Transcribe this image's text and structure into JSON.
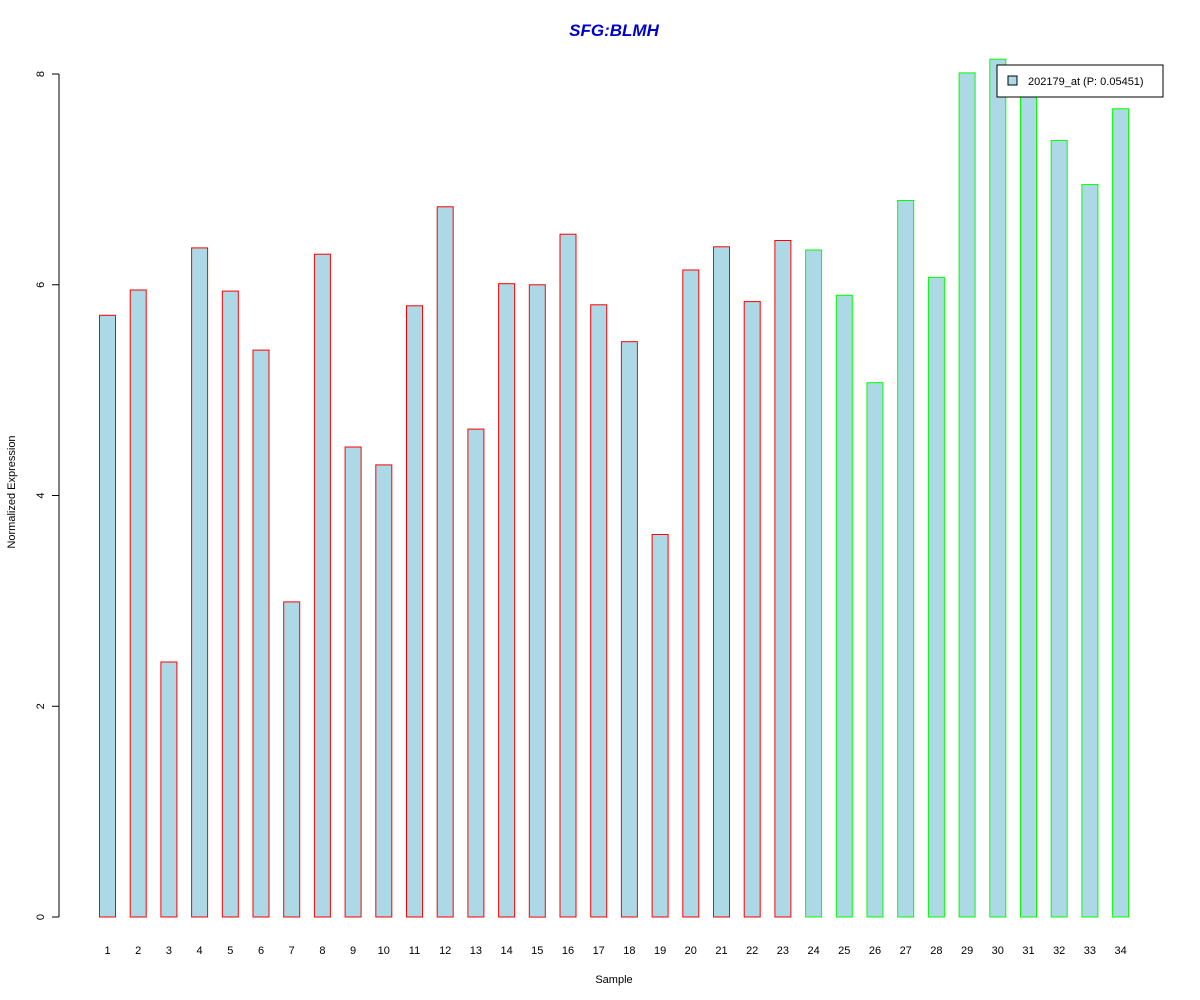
{
  "chart_data": {
    "type": "bar",
    "title": "SFG:BLMH",
    "xlabel": "Sample",
    "ylabel": "Normalized Expression",
    "ylim": [
      0,
      8
    ],
    "yticks": [
      0,
      2,
      4,
      6,
      8
    ],
    "categories": [
      "1",
      "2",
      "3",
      "4",
      "5",
      "6",
      "7",
      "8",
      "9",
      "10",
      "11",
      "12",
      "13",
      "14",
      "15",
      "16",
      "17",
      "18",
      "19",
      "20",
      "21",
      "22",
      "23",
      "24",
      "25",
      "26",
      "27",
      "28",
      "29",
      "30",
      "31",
      "32",
      "33",
      "34"
    ],
    "series": [
      {
        "name": "202179_at (P: 0.05451)",
        "values": [
          5.71,
          5.95,
          2.42,
          6.35,
          5.94,
          5.38,
          2.99,
          6.29,
          4.46,
          4.29,
          5.8,
          6.74,
          4.63,
          6.01,
          6.0,
          6.48,
          5.81,
          5.46,
          3.63,
          6.14,
          6.36,
          5.84,
          6.42,
          6.33,
          5.9,
          5.07,
          6.8,
          6.07,
          8.01,
          8.14,
          7.8,
          7.37,
          6.95,
          7.67
        ]
      }
    ],
    "group_sizes": [
      23,
      11
    ],
    "colors": {
      "bar_fill": "#ADD8E6",
      "group_1_border": "#FF0000",
      "group_2_border": "#00FF00",
      "title": "#0000CD",
      "axis": "#000000"
    },
    "legend": {
      "entry": "202179_at (P: 0.05451)",
      "placement": "top-right"
    },
    "grid": false
  }
}
